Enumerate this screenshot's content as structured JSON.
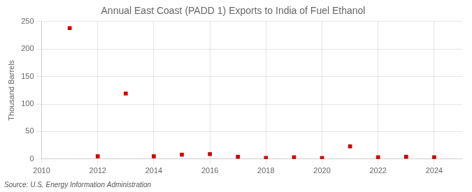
{
  "chart_data": {
    "type": "scatter",
    "title": "Annual East Coast (PADD 1) Exports to India of Fuel Ethanol",
    "ylabel": "Thousand Barrels",
    "annotation": "Source: U.S. Energy Information Administration",
    "x": [
      2011,
      2012,
      2013,
      2014,
      2015,
      2016,
      2017,
      2018,
      2019,
      2020,
      2021,
      2022,
      2023,
      2024
    ],
    "values": [
      238,
      5,
      119,
      5,
      8,
      9,
      4,
      2,
      3,
      2,
      23,
      3,
      4,
      3
    ],
    "color": "#cc0000",
    "marker": "square",
    "xlim": [
      2010,
      2025
    ],
    "xticks": [
      2010,
      2012,
      2014,
      2016,
      2018,
      2020,
      2022,
      2024
    ],
    "ylim": [
      0,
      250
    ],
    "yticks": [
      0,
      50,
      100,
      150,
      200,
      250
    ],
    "grid": true
  }
}
